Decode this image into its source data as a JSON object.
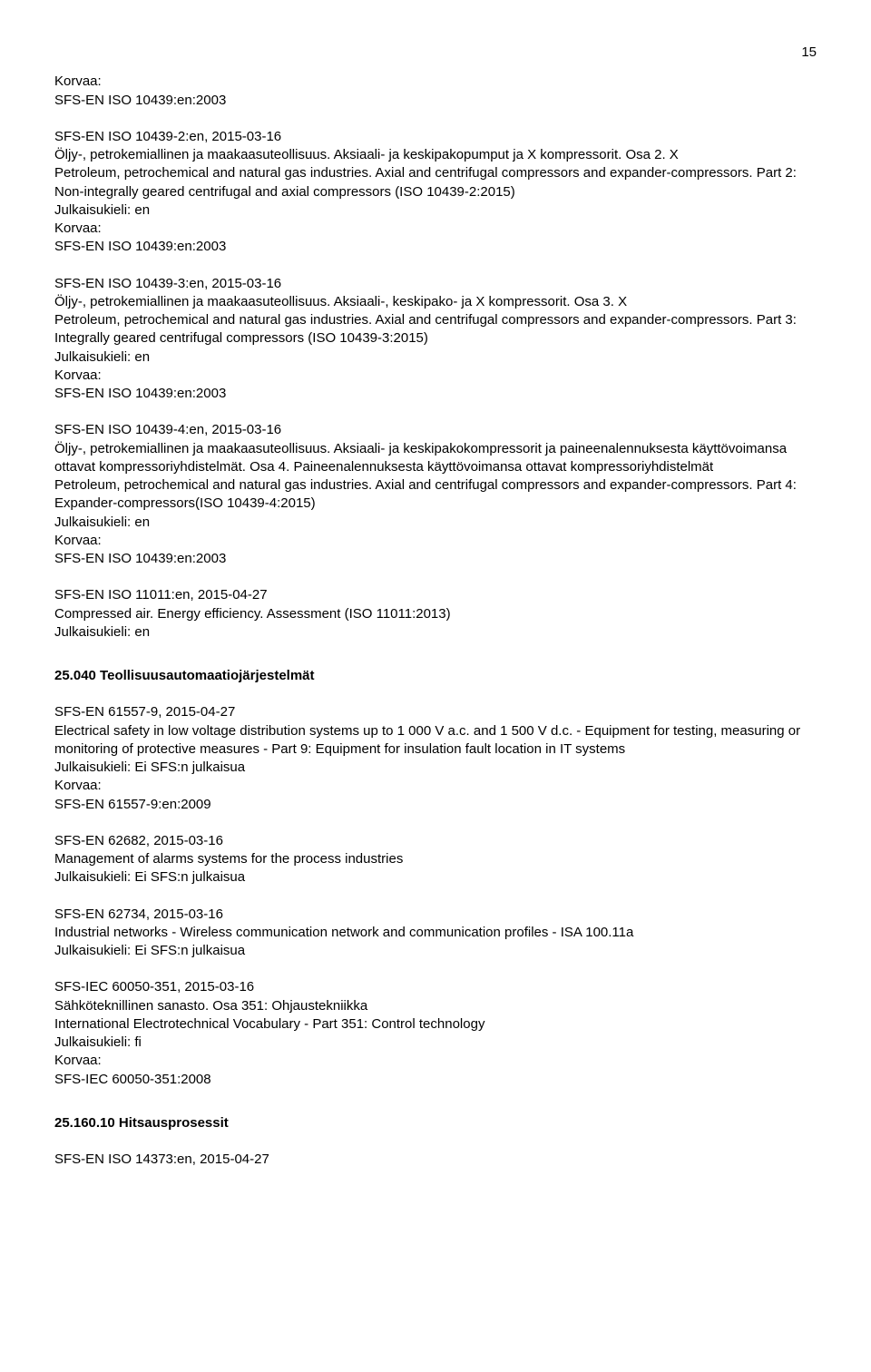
{
  "pageNumber": "15",
  "entries": [
    {
      "lines": [
        "Korvaa:",
        "SFS-EN ISO 10439:en:2003"
      ]
    },
    {
      "lines": [
        "SFS-EN ISO 10439-2:en, 2015-03-16",
        "Öljy-, petrokemiallinen ja maakaasuteollisuus. Aksiaali- ja keskipakopumput ja X kompressorit. Osa 2. X",
        "Petroleum, petrochemical and natural gas industries. Axial and centrifugal compressors and expander-compressors. Part 2: Non-integrally geared centrifugal and axial compressors (ISO 10439-2:2015)",
        "Julkaisukieli: en",
        "Korvaa:",
        "SFS-EN ISO 10439:en:2003"
      ]
    },
    {
      "lines": [
        "SFS-EN ISO 10439-3:en, 2015-03-16",
        "Öljy-, petrokemiallinen ja maakaasuteollisuus. Aksiaali-, keskipako- ja X kompressorit. Osa 3. X",
        "Petroleum, petrochemical and natural gas industries. Axial and centrifugal compressors and expander-compressors. Part 3: Integrally geared centrifugal compressors (ISO 10439-3:2015)",
        "Julkaisukieli: en",
        "Korvaa:",
        "SFS-EN ISO 10439:en:2003"
      ]
    },
    {
      "lines": [
        "SFS-EN ISO 10439-4:en, 2015-03-16",
        "Öljy-, petrokemiallinen ja maakaasuteollisuus.  Aksiaali- ja keskipakokompressorit ja paineenalennuksesta käyttövoimansa ottavat kompressoriyhdistelmät. Osa 4.  Paineenalennuksesta käyttövoimansa ottavat kompressoriyhdistelmät",
        "Petroleum, petrochemical and natural gas industries. Axial and centrifugal compressors and expander-compressors. Part 4: Expander-compressors(ISO 10439-4:2015)",
        "Julkaisukieli: en",
        "Korvaa:",
        "SFS-EN ISO 10439:en:2003"
      ]
    },
    {
      "lines": [
        "SFS-EN ISO 11011:en, 2015-04-27",
        "Compressed air. Energy efficiency. Assessment (ISO 11011:2013)",
        "Julkaisukieli: en"
      ]
    }
  ],
  "sectionHeading1": "25.040 Teollisuusautomaatiojärjestelmät",
  "entries2": [
    {
      "lines": [
        "SFS-EN 61557-9, 2015-04-27",
        "Electrical safety in low voltage distribution systems up to 1 000 V a.c. and 1 500 V d.c. - Equipment for testing, measuring or monitoring of protective measures - Part 9: Equipment for insulation fault location in IT systems",
        "Julkaisukieli: Ei SFS:n julkaisua",
        "Korvaa:",
        "SFS-EN 61557-9:en:2009"
      ]
    },
    {
      "lines": [
        "SFS-EN 62682, 2015-03-16",
        "Management of alarms systems for the process industries",
        "Julkaisukieli: Ei SFS:n julkaisua"
      ]
    },
    {
      "lines": [
        "SFS-EN 62734, 2015-03-16",
        "Industrial networks - Wireless communication network and communication profiles - ISA 100.11a",
        "Julkaisukieli: Ei SFS:n julkaisua"
      ]
    },
    {
      "lines": [
        "SFS-IEC 60050-351, 2015-03-16",
        "Sähköteknillinen sanasto. Osa 351: Ohjaustekniikka",
        "International Electrotechnical Vocabulary - Part 351: Control technology",
        "Julkaisukieli: fi",
        "Korvaa:",
        "SFS-IEC 60050-351:2008"
      ]
    }
  ],
  "sectionHeading2": "25.160.10 Hitsausprosessit",
  "entries3": [
    {
      "lines": [
        "SFS-EN ISO 14373:en, 2015-04-27"
      ]
    }
  ]
}
